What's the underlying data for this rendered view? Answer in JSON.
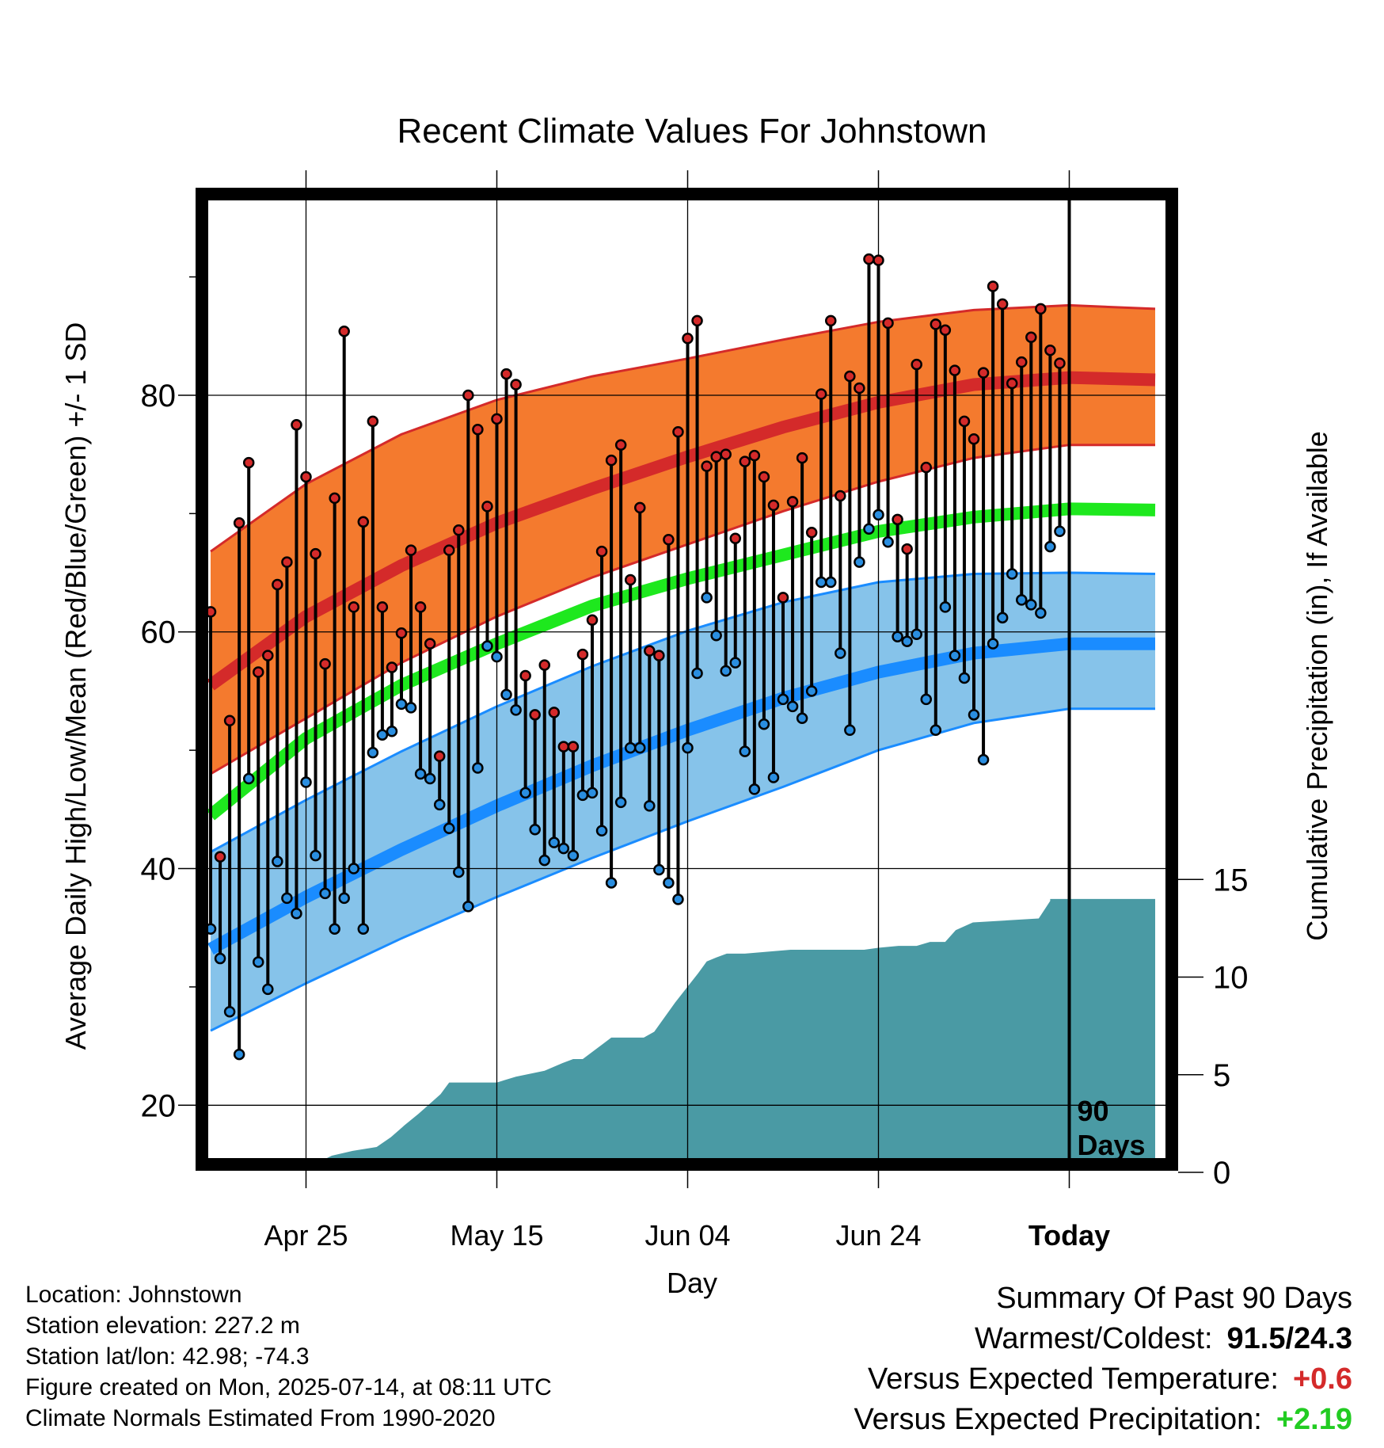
{
  "chart_data": {
    "type": "line",
    "title": "Recent Climate Values For Johnstown",
    "xlabel": "Day",
    "ylabel": "Average Daily High/Low/Mean (Red/Blue/Green) +/- 1 SD",
    "y2label": "Cumulative Precipitation (in), If Available",
    "x_tick_labels": [
      "Apr 25",
      "May 15",
      "Jun 04",
      "Jun 24",
      "Today"
    ],
    "x_ticks_day": [
      10,
      30,
      50,
      70,
      90
    ],
    "y_ticks": [
      20,
      40,
      60,
      80
    ],
    "y2_ticks": [
      0,
      5,
      10,
      15
    ],
    "ylim": [
      15,
      97
    ],
    "y2lim": [
      0,
      50
    ],
    "today_label": "90 Days",
    "colors": {
      "high_band": "#f47a2e",
      "high_line": "#d42a2a",
      "low_band": "#86c3ea",
      "low_line": "#1a8cff",
      "mean_line": "#1ee81e",
      "precip": "#4a9aa4",
      "high_dot": "#d42a2a",
      "low_dot": "#2a8ee0"
    },
    "normals": {
      "days": [
        0,
        10,
        20,
        30,
        40,
        50,
        60,
        70,
        80,
        90,
        99
      ],
      "high_mean": [
        55.5,
        61.3,
        65.6,
        69.2,
        72.1,
        74.8,
        77.3,
        79.4,
        80.9,
        81.5,
        81.3
      ],
      "high_upper": [
        66.8,
        72.5,
        76.7,
        79.6,
        81.6,
        83.1,
        84.7,
        86.2,
        87.2,
        87.6,
        87.3
      ],
      "high_lower": [
        48.0,
        52.7,
        57.4,
        61.3,
        64.6,
        67.4,
        70.2,
        72.7,
        74.7,
        75.8,
        75.8
      ],
      "mean_line": [
        44.5,
        51.0,
        55.5,
        59.0,
        62.2,
        64.5,
        66.5,
        68.5,
        69.7,
        70.4,
        70.3
      ],
      "low_mean": [
        33.2,
        37.6,
        41.6,
        45.3,
        48.7,
        51.7,
        54.4,
        56.6,
        58.2,
        59.0,
        59.0
      ],
      "low_upper": [
        41.4,
        45.8,
        49.9,
        53.7,
        57.1,
        60.1,
        62.5,
        64.2,
        64.9,
        65.0,
        64.9
      ],
      "low_lower": [
        26.3,
        30.3,
        34.1,
        37.6,
        40.9,
        44.0,
        46.9,
        50.0,
        52.3,
        53.5,
        53.5
      ]
    },
    "series": [
      {
        "name": "High",
        "values": [
          61.7,
          41.0,
          52.5,
          69.2,
          74.3,
          56.6,
          58.0,
          64.0,
          65.9,
          77.5,
          73.1,
          66.6,
          57.3,
          71.3,
          85.4,
          62.1,
          69.3,
          77.8,
          62.1,
          57.0,
          59.9,
          66.9,
          62.1,
          59.0,
          49.5,
          66.9,
          68.6,
          80.0,
          77.1,
          70.6,
          78.0,
          81.8,
          80.9,
          56.3,
          53.0,
          57.2,
          53.2,
          50.3,
          50.3,
          58.1,
          61.0,
          66.8,
          74.5,
          75.8,
          64.4,
          70.5,
          58.4,
          58.0,
          67.8,
          76.9,
          84.8,
          86.3,
          74.0,
          74.8,
          75.0,
          67.9,
          74.4,
          74.9,
          73.1,
          70.7,
          62.9,
          71.0,
          74.7,
          68.4,
          80.1,
          86.3,
          71.5,
          81.6,
          80.6,
          91.5,
          91.4,
          86.1,
          69.5,
          67.0,
          82.6,
          73.9,
          86.0,
          85.5,
          82.1,
          77.8,
          76.3,
          81.9,
          89.2,
          87.7,
          81.0,
          82.8,
          84.9,
          87.3,
          83.8,
          82.7
        ]
      },
      {
        "name": "Low",
        "values": [
          34.9,
          32.4,
          27.9,
          24.3,
          47.6,
          32.1,
          29.8,
          40.6,
          37.5,
          36.2,
          47.3,
          41.1,
          37.9,
          34.9,
          37.5,
          40.0,
          34.9,
          49.8,
          51.3,
          51.6,
          53.9,
          53.6,
          48.0,
          47.6,
          45.4,
          43.4,
          39.7,
          36.8,
          48.5,
          58.8,
          57.9,
          54.7,
          53.4,
          46.4,
          43.3,
          40.7,
          42.2,
          41.7,
          41.1,
          46.2,
          46.4,
          43.2,
          38.8,
          45.6,
          50.2,
          50.2,
          45.3,
          39.9,
          38.8,
          37.4,
          50.2,
          56.5,
          62.9,
          59.7,
          56.7,
          57.4,
          49.9,
          46.7,
          52.2,
          47.7,
          54.3,
          53.7,
          52.7,
          55.0,
          64.2,
          64.2,
          58.2,
          51.7,
          65.9,
          68.7,
          69.9,
          67.6,
          59.6,
          59.2,
          59.8,
          54.3,
          51.7,
          62.1,
          58.0,
          56.1,
          53.0,
          49.2,
          59.0,
          61.2,
          64.9,
          62.7,
          62.3,
          61.6,
          67.2,
          68.5
        ]
      },
      {
        "name": "Cumulative Precipitation",
        "days": [
          0,
          9.9,
          10.4,
          12.7,
          14.9,
          17.4,
          18.9,
          20.3,
          21.8,
          24.1,
          25.0,
          30.0,
          32.0,
          35.0,
          36.9,
          38.0,
          39.0,
          42.0,
          45.4,
          46.5,
          48.7,
          51.1,
          52.0,
          53.0,
          54.1,
          55.0,
          56.0,
          60.8,
          65.0,
          68.5,
          70.0,
          72.1,
          74.0,
          75.4,
          77.0,
          78.1,
          79.9,
          86.8,
          88.0,
          88.0,
          99.0
        ],
        "values": [
          0,
          0,
          0.3,
          0.85,
          1.1,
          1.3,
          1.8,
          2.4,
          3.0,
          4.0,
          4.6,
          4.6,
          4.9,
          5.2,
          5.6,
          5.8,
          5.8,
          6.9,
          6.9,
          7.2,
          8.7,
          10.2,
          10.8,
          11.0,
          11.2,
          11.2,
          11.2,
          11.4,
          11.4,
          11.4,
          11.5,
          11.6,
          11.6,
          11.8,
          11.8,
          12.4,
          12.8,
          13.0,
          13.9,
          14.0,
          14.0
        ]
      }
    ]
  },
  "info": {
    "location": "Location: Johnstown",
    "elevation": "Station elevation: 227.2 m",
    "latlon": "Station lat/lon: 42.98; -74.3",
    "created": "Figure created on Mon, 2025-07-14, at 08:11 UTC",
    "normals": "Climate Normals Estimated From 1990-2020"
  },
  "summary": {
    "title": "Summary Of Past 90 Days",
    "warmest_label": "Warmest/Coldest:",
    "warmest_value": "91.5/24.3",
    "temp_label": "Versus Expected Temperature:",
    "temp_value": "+0.6",
    "temp_color": "#d42a2a",
    "precip_label": "Versus Expected Precipitation:",
    "precip_value": "+2.19",
    "precip_color": "#22cc22"
  }
}
